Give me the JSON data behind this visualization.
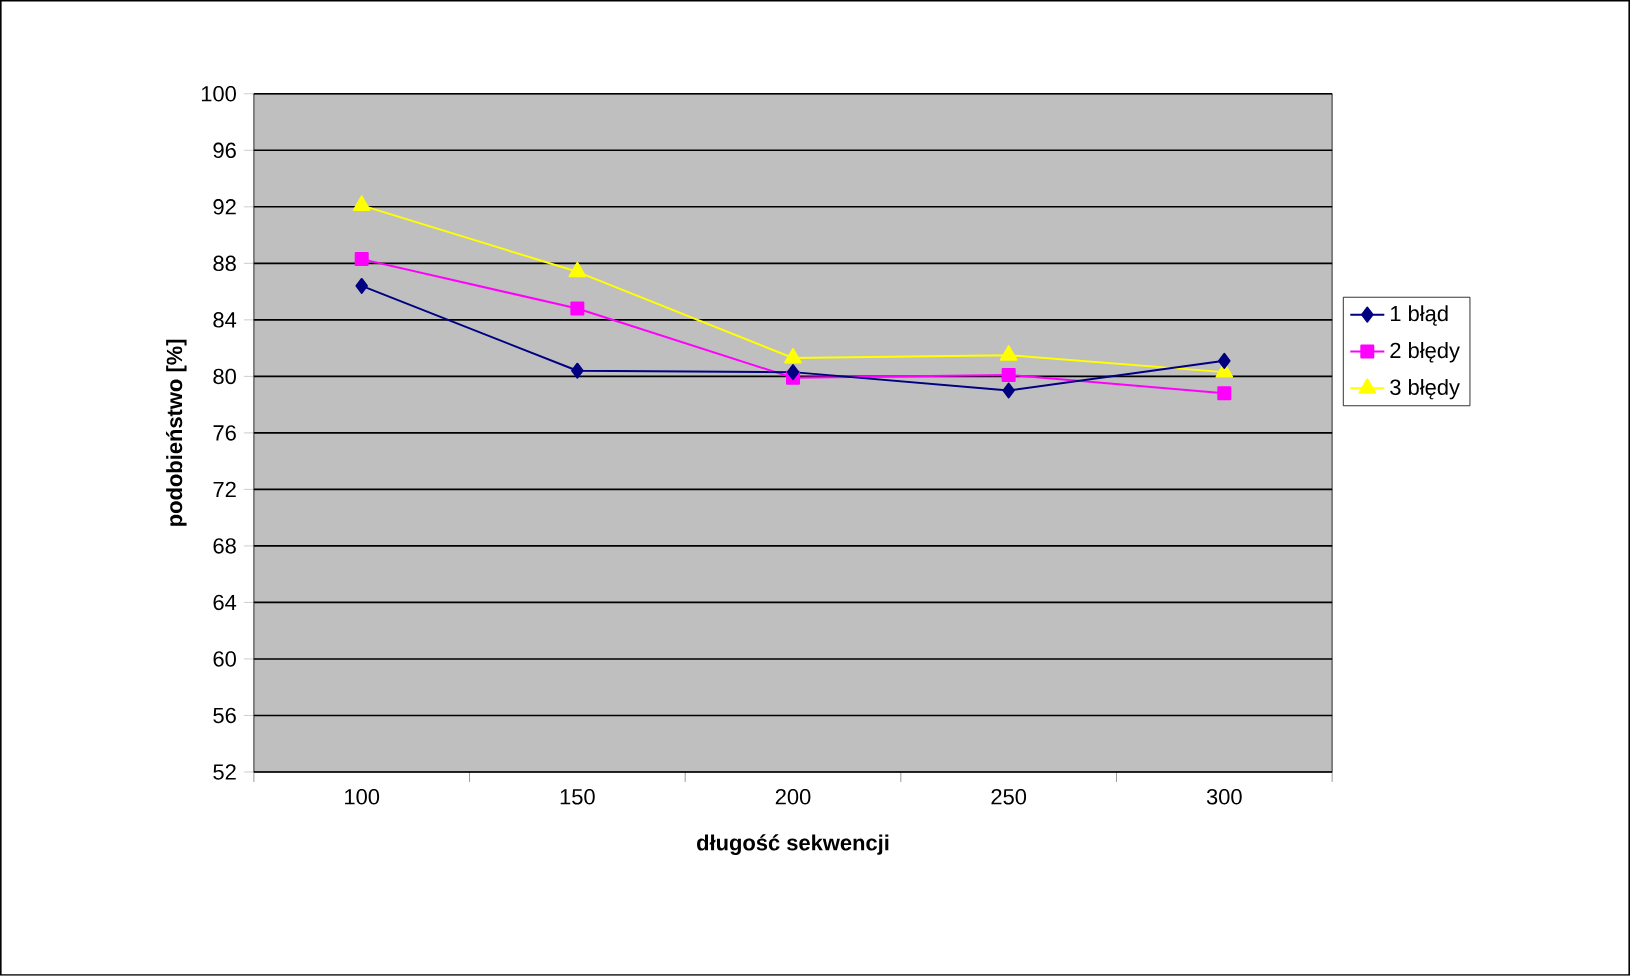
{
  "chart_data": {
    "type": "line",
    "xlabel": "długość sekwencji",
    "ylabel": "podobieństwo [%]",
    "categories": [
      "100",
      "150",
      "200",
      "250",
      "300"
    ],
    "series": [
      {
        "name": "1 błąd",
        "color": "#000080",
        "marker": "diamond",
        "values": [
          86.4,
          80.4,
          80.3,
          79.0,
          81.1
        ]
      },
      {
        "name": "2 błędy",
        "color": "#ff00ff",
        "marker": "square",
        "values": [
          88.3,
          84.8,
          79.9,
          80.1,
          78.8
        ]
      },
      {
        "name": "3 błędy",
        "color": "#ffff00",
        "marker": "triangle",
        "values": [
          92.1,
          87.4,
          81.3,
          81.5,
          80.3
        ]
      }
    ],
    "ylim": [
      52,
      100
    ],
    "yticks": [
      52,
      56,
      60,
      64,
      68,
      72,
      76,
      80,
      84,
      88,
      92,
      96,
      100
    ],
    "grid": "y",
    "legend": "right",
    "line_style": "solid"
  }
}
